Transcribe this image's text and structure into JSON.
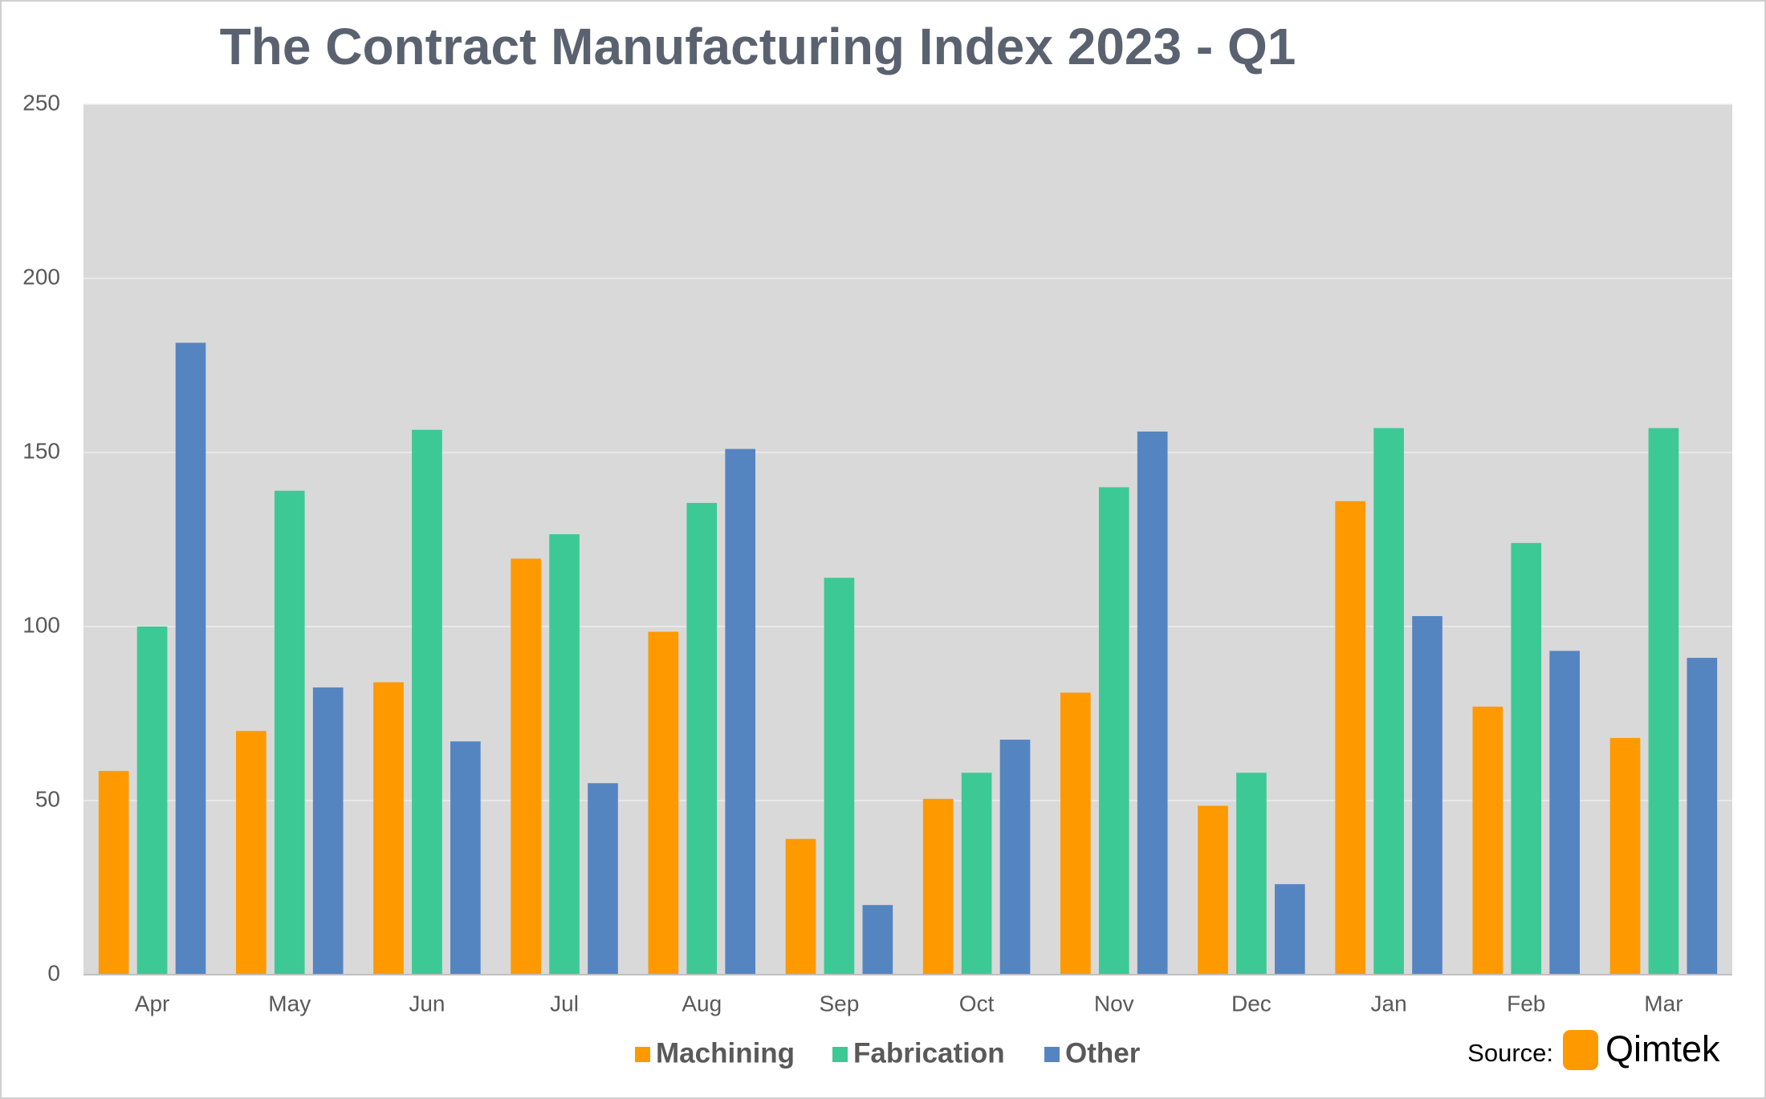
{
  "chart_data": {
    "type": "bar",
    "title": "The Contract Manufacturing Index 2023 - Q1",
    "categories": [
      "Apr",
      "May",
      "Jun",
      "Jul",
      "Aug",
      "Sep",
      "Oct",
      "Nov",
      "Dec",
      "Jan",
      "Feb",
      "Mar"
    ],
    "series": [
      {
        "name": "Machining",
        "color": "#ff9900",
        "values": [
          58.5,
          70,
          84,
          119.5,
          98.5,
          39,
          50.5,
          81,
          48.5,
          136,
          77,
          68
        ]
      },
      {
        "name": "Fabrication",
        "color": "#3cc995",
        "values": [
          100,
          139,
          156.5,
          126.5,
          135.5,
          114,
          58,
          140,
          58,
          157,
          124,
          157
        ]
      },
      {
        "name": "Other",
        "color": "#5585c1",
        "values": [
          181.5,
          82.5,
          67,
          55,
          151,
          20,
          67.5,
          156,
          26,
          103,
          93,
          91
        ]
      }
    ],
    "ylim": [
      0,
      250
    ],
    "yticks": [
      0,
      50,
      100,
      150,
      200,
      250
    ],
    "grid": true,
    "source": "Source:",
    "logo": "Qimtek"
  }
}
